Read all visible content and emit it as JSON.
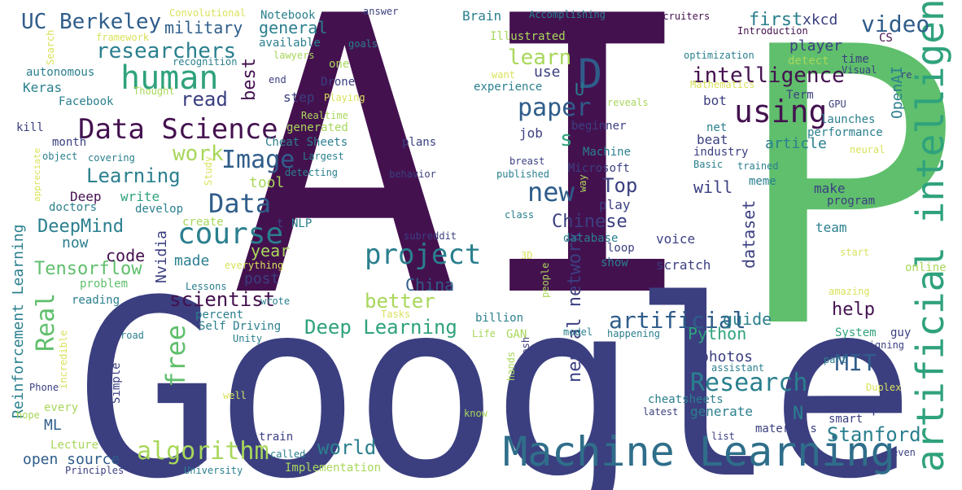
{
  "palette": {
    "dark_purple": "#44114f",
    "indigo": "#3b3f80",
    "blue": "#2f5d8a",
    "teal": "#2a7f8e",
    "green_teal": "#2fa27d",
    "green": "#5fbf6c",
    "light_green": "#a8d75b",
    "yellow": "#d9e25b"
  },
  "words": {
    "AI_A": "A",
    "AI_I": "I",
    "P": "P",
    "Google": "Google",
    "D": "D",
    "Machine_Learning": "Machine Learning",
    "artificial_intelligence": "artificial intelligence",
    "Data_Science": "Data Science",
    "human": "human",
    "course": "course",
    "Data": "Data",
    "using": "using",
    "paper": "paper",
    "new": "new",
    "project": "project",
    "algorithm": "algorithm",
    "Research": "Research",
    "researchers": "researchers",
    "UC_Berkeley": "UC Berkeley",
    "Image": "Image",
    "work": "work",
    "intelligence": "intelligence",
    "artificial": "artificial",
    "Deep_Learning": "Deep Learning",
    "video": "video",
    "learn": "learn",
    "free": "free",
    "Real": "Real",
    "MIT": "MIT",
    "Python": "Python",
    "Stanford": "Stanford",
    "world": "world",
    "better": "better",
    "China": "China",
    "scientist": "scientist",
    "Top": "Top",
    "Chinese": "Chinese",
    "Learning": "Learning",
    "DeepMind": "DeepMind",
    "Tensorflow": "Tensorflow",
    "Reinforcement_Learning": "Reinforcement Learning",
    "neural_network": "neural network",
    "dataset": "dataset",
    "read": "read",
    "best": "best",
    "military": "military",
    "general": "general",
    "first": "first",
    "xkcd": "xkcd",
    "player": "player",
    "OpenAI": "OpenAI",
    "CS": "CS",
    "help": "help",
    "guide": "guide",
    "photos": "photos",
    "generate": "generate",
    "N": "N",
    "map": "map",
    "open_source": "open source",
    "ML": "ML",
    "code": "code",
    "now": "now",
    "year": "year",
    "made": "made",
    "post": "post",
    "Nvidia": "Nvidia",
    "will": "will",
    "s": "s",
    "U": "U",
    "use": "use",
    "Brain": "Brain",
    "Accomplishing": "Accomplishing",
    "recruiters": "recruiters",
    "Introduction": "Introduction",
    "Convolutional": "Convolutional",
    "Notebook": "Notebook",
    "answer": "answer",
    "Search": "Search",
    "framework": "framework",
    "recognition": "recognition",
    "autonomous": "autonomous",
    "Keras": "Keras",
    "Facebook": "Facebook",
    "kill": "kill",
    "month": "month",
    "object": "object",
    "covering": "covering",
    "appreciate": "appreciate",
    "doctors": "doctors",
    "develop": "develop",
    "Cheat_Sheets": "Cheat Sheets",
    "generated": "generated",
    "Realtime": "Realtime",
    "Largest": "Largest",
    "detecting": "detecting",
    "Study": "Study",
    "tool": "tool",
    "write": "write",
    "Deep": "Deep",
    "create": "create",
    "everything": "everything",
    "NLP": "NLP",
    "t": "t",
    "Lessons": "Lessons",
    "problem": "problem",
    "reading": "reading",
    "percent": "percent",
    "wrote": "wrote",
    "Self_Driving": "Self Driving",
    "Unity": "Unity",
    "road": "road",
    "incredible": "incredible",
    "Simple": "Simple",
    "Phone": "Phone",
    "well": "well",
    "hope": "hope",
    "every": "every",
    "Lecture": "Lecture",
    "Principles": "Principles",
    "University": "University",
    "called": "called",
    "train": "train",
    "Implementation": "Implementation",
    "Tasks": "Tasks",
    "billion": "billion",
    "Life": "Life",
    "GAN": "GAN",
    "hands": "hands",
    "Crash": "Crash",
    "know": "know",
    "model": "model",
    "happening": "happening",
    "cheatsheets": "cheatsheets",
    "latest": "latest",
    "materials": "materials",
    "list": "list",
    "assistant": "assistant",
    "part": "part",
    "System": "System",
    "guy": "guy",
    "designing": "designing",
    "Duplex": "Duplex",
    "smart": "smart",
    "even": "even",
    "online": "online",
    "amazing": "amazing",
    "start": "start",
    "team": "team",
    "make": "make",
    "program": "program",
    "meme": "meme",
    "trained": "trained",
    "Basic": "Basic",
    "industry": "industry",
    "beat": "beat",
    "net": "net",
    "article": "article",
    "bot": "bot",
    "launches": "launches",
    "performance": "performance",
    "neural": "neural",
    "GPU": "GPU",
    "Term": "Term",
    "Visual": "Visual",
    "time": "time",
    "detect": "detect",
    "re": "re",
    "optimization": "optimization",
    "Mathematics": "Mathematics",
    "beginner": "beginner",
    "job": "job",
    "Machine": "Machine",
    "breast": "breast",
    "published": "published",
    "Microsoft": "Microsoft",
    "plans": "plans",
    "behavior": "behavior",
    "play": "play",
    "class": "class",
    "database": "database",
    "loop": "loop",
    "voice": "voice",
    "show": "show",
    "scratch": "scratch",
    "subreddit": "subreddit",
    "3D": "3D",
    "people": "people",
    "want": "want",
    "way": "way",
    "experience": "experience",
    "reveals": "reveals",
    "Thought": "Thought",
    "Illustrated": "Illustrated",
    "goals": "goals",
    "one": "one",
    "available": "available",
    "lawyers": "lawyers",
    "end": "end",
    "Drone": "Drone",
    "step": "step",
    "Playing": "Playing"
  }
}
